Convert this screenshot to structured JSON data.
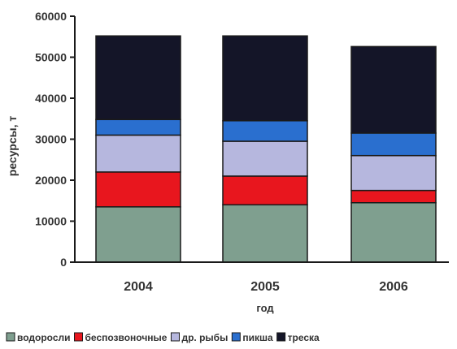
{
  "chart_data": {
    "type": "bar",
    "stacked": true,
    "categories": [
      "2004",
      "2005",
      "2006"
    ],
    "series": [
      {
        "name": "водоросли",
        "color": "#7f9f8f",
        "values": [
          13500,
          14000,
          14500
        ]
      },
      {
        "name": "беспозвоночные",
        "color": "#e8161e",
        "values": [
          8500,
          7000,
          3000
        ]
      },
      {
        "name": "др. рыбы",
        "color": "#b6b7de",
        "values": [
          9000,
          8500,
          8500
        ]
      },
      {
        "name": "пикша",
        "color": "#2a6fcf",
        "values": [
          3800,
          5000,
          5500
        ]
      },
      {
        "name": "треска",
        "color": "#141528",
        "values": [
          20400,
          20700,
          21100
        ]
      }
    ],
    "xlabel": "год",
    "ylabel": "ресурсы, т",
    "ylim": [
      0,
      60000
    ],
    "yticks": [
      0,
      10000,
      20000,
      30000,
      40000,
      50000,
      60000
    ],
    "ytick_labels": [
      "0",
      "10000",
      "20000",
      "30000",
      "40000",
      "50000",
      "60000"
    ],
    "grid": false,
    "legend_position": "bottom"
  }
}
